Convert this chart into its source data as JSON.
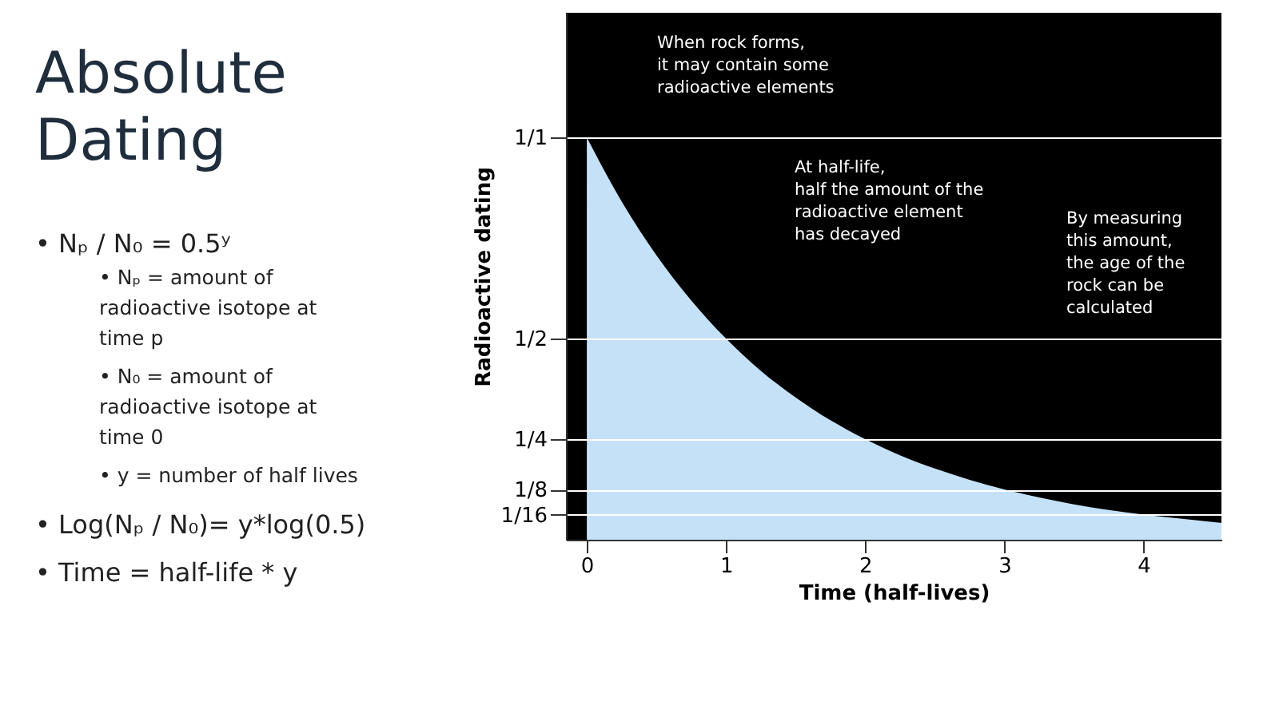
{
  "chart_data": {
    "type": "area",
    "title": "Absolute Dating",
    "xlabel": "Time (half-lives)",
    "ylabel": "Radioactive dating",
    "x": [
      0,
      0.25,
      0.5,
      0.75,
      1,
      1.25,
      1.5,
      1.75,
      2,
      2.25,
      2.5,
      2.75,
      3,
      3.25,
      3.5,
      3.75,
      4,
      4.25,
      4.56
    ],
    "series": [
      {
        "color": "#c5e1f7",
        "values": [
          1,
          0.841,
          0.707,
          0.595,
          0.5,
          0.42,
          0.354,
          0.297,
          0.25,
          0.21,
          0.177,
          0.149,
          0.125,
          0.105,
          0.088,
          0.074,
          0.0625,
          0.053,
          0.042
        ]
      }
    ],
    "xlim": [
      -0.15,
      4.56
    ],
    "xticks": [
      0,
      1,
      2,
      3,
      4
    ],
    "ylim": [
      0,
      1.31
    ],
    "yticks": [
      {
        "value": 1,
        "label": "1/1"
      },
      {
        "value": 0.5,
        "label": "1/2"
      },
      {
        "value": 0.25,
        "label": "1/4"
      },
      {
        "value": 0.125,
        "label": "1/8"
      },
      {
        "value": 0.0625,
        "label": "1/16"
      }
    ],
    "grid": "y",
    "legend": false,
    "annotations": [
      "• Nₚ / N₀ = 0.5ʸ",
      "• Nₚ = amount of\nradioactive isotope at\ntime p",
      "• N₀ = amount of\nradioactive isotope at\ntime 0",
      "• y = number of half lives",
      "• Log(Nₚ / N₀)= y*log(0.5)",
      "• Time = half-life * y",
      "When rock forms,\nit may contain some\nradioactive elements",
      "At half-life,\nhalf the amount of the\nradioactive element\nhas decayed",
      "By measuring\nthis amount,\nthe age of the\nrock can be\ncalculated"
    ]
  }
}
